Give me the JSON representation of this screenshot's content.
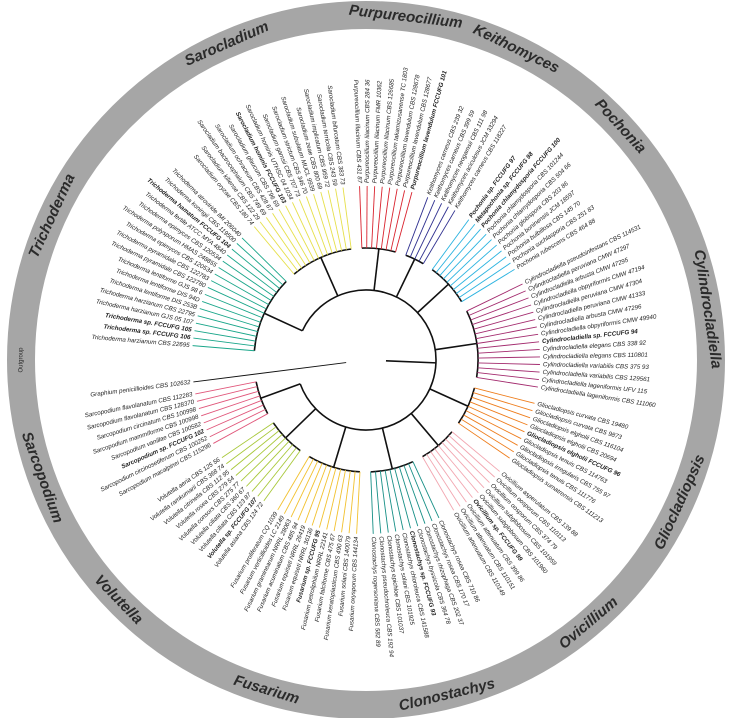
{
  "tree": {
    "outgroup": {
      "label": "Outgroup",
      "leaf": "Graphium penicillioides CBS 102632"
    },
    "clades": [
      {
        "name": "Trichoderma",
        "color": "#1aa68a",
        "leaves": [
          {
            "label": "Trichoderma harzianum CBS 22695"
          },
          {
            "label": "Trichoderma sp. FCCUFG 106",
            "bold": true
          },
          {
            "label": "Trichoderma sp. FCCUFG 105",
            "bold": true
          },
          {
            "label": "Trichoderma harzianum GJS 05 107"
          },
          {
            "label": "Trichoderma harzianum CBS 22795"
          },
          {
            "label": "Trichoderma lentiforme DIS 253B"
          },
          {
            "label": "Trichoderma lentiforme DIS 94D"
          },
          {
            "label": "Trichoderma lentiforme GJS 98 6"
          },
          {
            "label": "Trichoderma pyramidale CBS 122780"
          },
          {
            "label": "Trichoderma pyramidale CBS 122783"
          },
          {
            "label": "Trichoderma epimyces CBS 120534"
          },
          {
            "label": "Trichoderma polysporum HMAS 248855"
          },
          {
            "label": "Trichoderma epimyces CBS 120534"
          },
          {
            "label": "Trichoderma fertile ATCC MYA 4840"
          },
          {
            "label": "Trichoderma hamatum FCCUFG 104",
            "bold": true
          },
          {
            "label": "Trichoderma koningii CBS 119500"
          },
          {
            "label": "Trichoderma atroviride IMI 206040"
          }
        ]
      },
      {
        "name": "Sarocladium",
        "color": "#e6e04a",
        "leaves": [
          {
            "label": "Sarocladium oryzae CBS 180 74"
          },
          {
            "label": "Sarocladium kiliense CBS 122 29"
          },
          {
            "label": "Sarocladium bactrocephalum CBS 749 69"
          },
          {
            "label": "Sarocladium ochraceum CBS 428 67"
          },
          {
            "label": "Sarocladium glaucum CBS 796 69"
          },
          {
            "label": "Sarocladium hominis FCCUFG 103",
            "bold": true
          },
          {
            "label": "Sarocladium hominis UTHSC 04 1034"
          },
          {
            "label": "Sarocladium gamsii CBS 707 73"
          },
          {
            "label": "Sarocladium strictum CBS 346 70"
          },
          {
            "label": "Sarocladium subulatum MUCL 9939"
          },
          {
            "label": "Sarocladium zeae CBS 800 69"
          },
          {
            "label": "Sarocladium implicatum CBS 959 72"
          },
          {
            "label": "Sarocladium terricola CBS 243 59"
          },
          {
            "label": "Sarocladium bifurcatum CBS 383 73"
          }
        ]
      },
      {
        "name": "Purpureocillium",
        "color": "#d9232e",
        "leaves": [
          {
            "label": "Purpureocillium lilacinum CBS 431 87"
          },
          {
            "label": "Purpureocillium lilacinum CBS 284 36"
          },
          {
            "label": "Purpureocillium lilacinum FMR 10362"
          },
          {
            "label": "Purpureocillium lilacinum CBS 126685"
          },
          {
            "label": "Purpureocillium takamizusanense TC 1803"
          },
          {
            "label": "Purpureocillium lavendulum CBS 128678"
          },
          {
            "label": "Purpureocillium lavendulum CBS 128677"
          },
          {
            "label": "Purpureocillium lavendulum FCCUFG 101",
            "bold": true
          }
        ]
      },
      {
        "name": "Keithomyces",
        "color": "#2e2f8f",
        "leaves": [
          {
            "label": "Keithomyces carneus CBS 239 32"
          },
          {
            "label": "Keithomyces carneus CBS 399 59"
          },
          {
            "label": "Keithomyces neogamsii CBS 111 98"
          },
          {
            "label": "Keithomyces aciculosus JCM 33294"
          },
          {
            "label": "Keithomyces carneus CBS 118227"
          }
        ]
      },
      {
        "name": "Pochonia",
        "color": "#2bb3e0",
        "leaves": [
          {
            "label": "Pochonia sp. FCCUFG 97",
            "bold": true
          },
          {
            "label": "Metapochonia sp. FCCUFG 98",
            "bold": true
          },
          {
            "label": "Pochonia chlamydosporia FCCUFG 100",
            "bold": true
          },
          {
            "label": "Pochonia chlamydosporia CBS 101244"
          },
          {
            "label": "Pochonia chlamydosporia CBS 504 66"
          },
          {
            "label": "Pochonia globispora CBS 203 86"
          },
          {
            "label": "Pochonia boninensis JCM 18597"
          },
          {
            "label": "Pochonia bulbillosa CBS 145 70"
          },
          {
            "label": "Pochonia suchlasporia CBS 251 83"
          },
          {
            "label": "Pochonia rubescens CBS 464 88"
          }
        ]
      },
      {
        "name": "Cylindrocladiella",
        "color": "#a32b6e",
        "leaves": [
          {
            "label": "Cylindrocladiella pseudoinfestans CBS 114531"
          },
          {
            "label": "Cylindrocladiella peruviana CMW 47297"
          },
          {
            "label": "Cylindrocladiella arbusta CMW 47295"
          },
          {
            "label": "Cylindrocladiella obpyriformis CMW 47194"
          },
          {
            "label": "Cylindrocladiella peruviana CMW 47304"
          },
          {
            "label": "Cylindrocladiella peruviana CMW 41333"
          },
          {
            "label": "Cylindrocladiella arbusta CMW 47296"
          },
          {
            "label": "Cylindrocladiella obpyriformis CMW 49940"
          },
          {
            "label": "Cylindrocladiella sp. FCCUFG 94",
            "bold": true
          },
          {
            "label": "Cylindrocladiella elegans CBS 338 92"
          },
          {
            "label": "Cylindrocladiella elegans CBS 110801"
          },
          {
            "label": "Cylindrocladiella variabilis CBS 375 93"
          },
          {
            "label": "Cylindrocladiella variabilis CBS 129561"
          },
          {
            "label": "Cylindrocladiella lageniformis UFV 115"
          },
          {
            "label": "Cylindrocladiella lageniformis CBS 111060"
          }
        ]
      },
      {
        "name": "Gliocladiopsis",
        "color": "#ee7d1c",
        "leaves": [
          {
            "label": "Gliocladiopsis curvata CBS 19480"
          },
          {
            "label": "Gliocladiopsis curvata CBS 9873"
          },
          {
            "label": "Gliocladiopsis elgholii CBS 116104"
          },
          {
            "label": "Gliocladiopsis elgholii CBS 20694"
          },
          {
            "label": "Gliocladiopsis elgholii FCCUFG 96",
            "bold": true
          },
          {
            "label": "Gliocladiopsis tenuis CBS 114763"
          },
          {
            "label": "Gliocladiopsis irregularis CBS 755 97"
          },
          {
            "label": "Gliocladiopsis tenuis CBS 111776"
          },
          {
            "label": "Gliocladiopsis sumatrensis CBS 111213"
          }
        ]
      },
      {
        "name": "Ovicillium",
        "color": "#f2a6b0",
        "leaves": [
          {
            "label": "Ovicillium asperulatum CBS 139 88"
          },
          {
            "label": "Ovicillium oosporum CBS 110113"
          },
          {
            "label": "Ovicillium oosporum CBS 374 79"
          },
          {
            "label": "Ovicillium subglobosum CBS 101959"
          },
          {
            "label": "Ovicillium subglobosum CBS 101960"
          },
          {
            "label": "Ovicillium sp. FCCUFG 99",
            "bold": true
          },
          {
            "label": "Ovicillium attenuatum CBS 399 86"
          },
          {
            "label": "Ovicillium attenuatum CBS 110151"
          },
          {
            "label": "Ovicillium attenuatum CBS 110149"
          }
        ]
      },
      {
        "name": "Clonostachys",
        "color": "#178f86",
        "leaves": [
          {
            "label": "Clonostachys rosea CBS 710 86"
          },
          {
            "label": "Clonostachys rosea CBS 170 17"
          },
          {
            "label": "Clonostachys rhizophaga CBS 202 37"
          },
          {
            "label": "Clonostachys byssicola CBS 364 78"
          },
          {
            "label": "Clonostachys sp. FCCUFG 93",
            "bold": true
          },
          {
            "label": "Clonostachys chloroleuca CBS 141588"
          },
          {
            "label": "Clonostachys solani CBS 101925"
          },
          {
            "label": "Clonostachys epichloe CBS 101037"
          },
          {
            "label": "Clonostachys pseudochroleuca CBS 192 94"
          },
          {
            "label": "Clonostachys rogersoniana CBS 582 89"
          }
        ]
      },
      {
        "name": "Fusarium",
        "color": "#f2c12e",
        "leaves": [
          {
            "label": "Fusarium oxysporum CBS 144134"
          },
          {
            "label": "Fusarium solani CBS 140079"
          },
          {
            "label": "Fusarium keratoplasticum CBS 490 63"
          },
          {
            "label": "Fusarium falciforme CBS 475 67"
          },
          {
            "label": "Fusarium petroliphilum NRRL 22141"
          },
          {
            "label": "Fusarium sp. FCCUFG 95",
            "bold": true
          },
          {
            "label": "Fusarium equiseti NRRL 36136"
          },
          {
            "label": "Fusarium equiseti NRRL 26419"
          },
          {
            "label": "Fusarium acuminatum CBS 485 94"
          },
          {
            "label": "Fusarium graminearum NRRL 28063"
          },
          {
            "label": "Fusarium verticillioides LC 2149"
          },
          {
            "label": "Fusarium proliferatum CQ 1039"
          }
        ]
      },
      {
        "name": "Volutella",
        "color": "#a8c83a",
        "leaves": [
          {
            "label": "Volutella asiana CBS 124 72"
          },
          {
            "label": "Volutella sp. FCCUFG 107",
            "bold": true
          },
          {
            "label": "Volutella ciliata CBS 123 87"
          },
          {
            "label": "Volutella ciliata CBS 360 67"
          },
          {
            "label": "Volutella consors CBS 275 77"
          },
          {
            "label": "Volutella rosea CBS 279 54"
          },
          {
            "label": "Volutella citrinella CBS 112 95"
          },
          {
            "label": "Volutella ramkumarii CBS 368 74"
          },
          {
            "label": "Volutella aeria CBS 125 56"
          }
        ]
      },
      {
        "name": "Sarcopodium",
        "color": "#e0567a",
        "leaves": [
          {
            "label": "Sarcopodium macalpinei CBS 115296"
          },
          {
            "label": "Sarcopodium circinosetiferum CBS 100252"
          },
          {
            "label": "Sarcopodium sp. FCCUFG 102",
            "bold": true
          },
          {
            "label": "Sarcopodium vanillae CBS 100582"
          },
          {
            "label": "Sarcopodium mammiforme CBS 100998"
          },
          {
            "label": "Sarcopodium circinatum CBS 100998"
          },
          {
            "label": "Sarcopodium flavolanatum CBS 128370"
          },
          {
            "label": "Sarcopodium flavolanatum CBS 112283"
          }
        ]
      }
    ]
  }
}
